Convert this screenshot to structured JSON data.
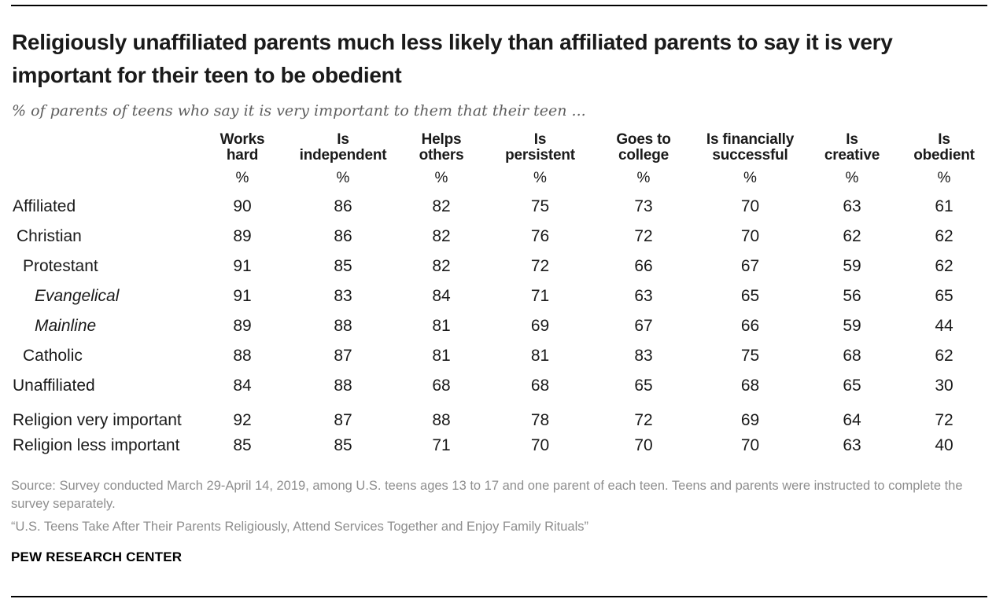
{
  "chart_data": {
    "type": "table",
    "title": "Religiously unaffiliated parents much less likely than affiliated parents to say it is very important for their teen to be obedient",
    "subtitle": "% of parents of teens who say it is very important to them that their teen ...",
    "unit": "%",
    "columns": [
      "Works hard",
      "Is independent",
      "Helps others",
      "Is persistent",
      "Goes to college",
      "Is financially successful",
      "Is creative",
      "Is obedient"
    ],
    "rows": [
      {
        "label": "Affiliated",
        "indent": 0,
        "italic": false,
        "gap_before": false,
        "values": [
          90,
          86,
          82,
          75,
          73,
          70,
          63,
          61
        ]
      },
      {
        "label": "Christian",
        "indent": 1,
        "italic": false,
        "gap_before": false,
        "values": [
          89,
          86,
          82,
          76,
          72,
          70,
          62,
          62
        ]
      },
      {
        "label": "Protestant",
        "indent": 2,
        "italic": false,
        "gap_before": false,
        "values": [
          91,
          85,
          82,
          72,
          66,
          67,
          59,
          62
        ]
      },
      {
        "label": "Evangelical",
        "indent": 3,
        "italic": true,
        "gap_before": false,
        "values": [
          91,
          83,
          84,
          71,
          63,
          65,
          56,
          65
        ]
      },
      {
        "label": "Mainline",
        "indent": 3,
        "italic": true,
        "gap_before": false,
        "values": [
          89,
          88,
          81,
          69,
          67,
          66,
          59,
          44
        ]
      },
      {
        "label": "Catholic",
        "indent": 2,
        "italic": false,
        "gap_before": false,
        "values": [
          88,
          87,
          81,
          81,
          83,
          75,
          68,
          62
        ]
      },
      {
        "label": "Unaffiliated",
        "indent": 0,
        "italic": false,
        "gap_before": false,
        "values": [
          84,
          88,
          68,
          68,
          65,
          68,
          65,
          30
        ]
      },
      {
        "label": "Religion very important",
        "indent": 0,
        "italic": false,
        "gap_before": true,
        "values": [
          92,
          87,
          88,
          78,
          72,
          69,
          64,
          72
        ]
      },
      {
        "label": "Religion less important",
        "indent": 0,
        "italic": false,
        "gap_before": false,
        "values": [
          85,
          85,
          71,
          70,
          70,
          70,
          63,
          40
        ]
      }
    ],
    "legend_position": "none",
    "grid": false
  },
  "footer": {
    "source": "Source: Survey conducted March 29-April 14, 2019, among U.S. teens ages 13 to 17 and one parent of each teen. Teens and parents were instructed to complete the survey separately.",
    "report": "“U.S. Teens Take After Their Parents Religiously, Attend Services Together and Enjoy Family Rituals”",
    "brand": "PEW RESEARCH CENTER"
  },
  "colors": {
    "title_text": "#1a1a1a",
    "subtitle_text": "#5e5e5e",
    "footnote_text": "#8e8e8e",
    "rule": "#000000",
    "background": "#ffffff"
  }
}
